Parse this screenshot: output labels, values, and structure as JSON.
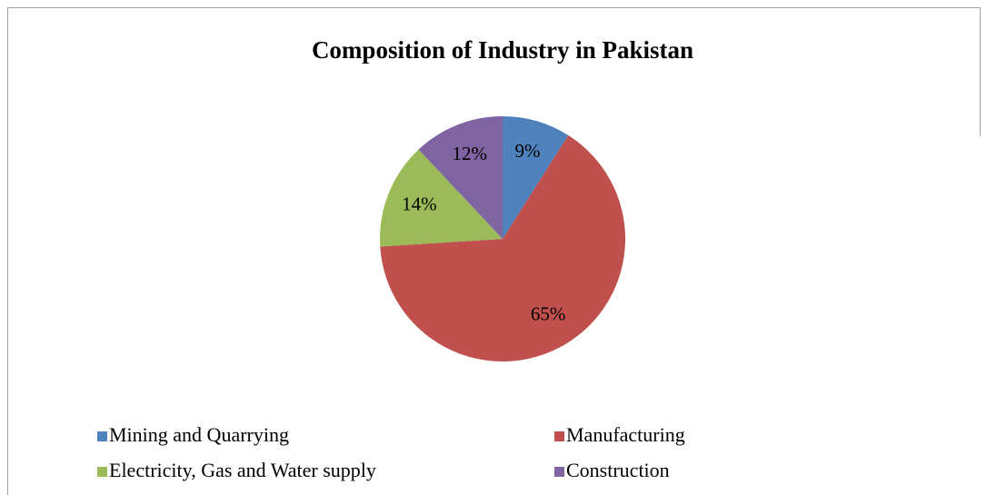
{
  "chart_data": {
    "type": "pie",
    "title": "Composition of Industry in Pakistan",
    "categories": [
      "Mining and Quarrying",
      "Manufacturing",
      "Electricity, Gas and Water supply",
      "Construction"
    ],
    "values": [
      9,
      65,
      14,
      12
    ],
    "value_labels": [
      "9%",
      "65%",
      "14%",
      "12%"
    ],
    "colors": [
      "#4f81bd",
      "#c0504d",
      "#9bbb59",
      "#8064a2"
    ],
    "legend": "bottom"
  }
}
